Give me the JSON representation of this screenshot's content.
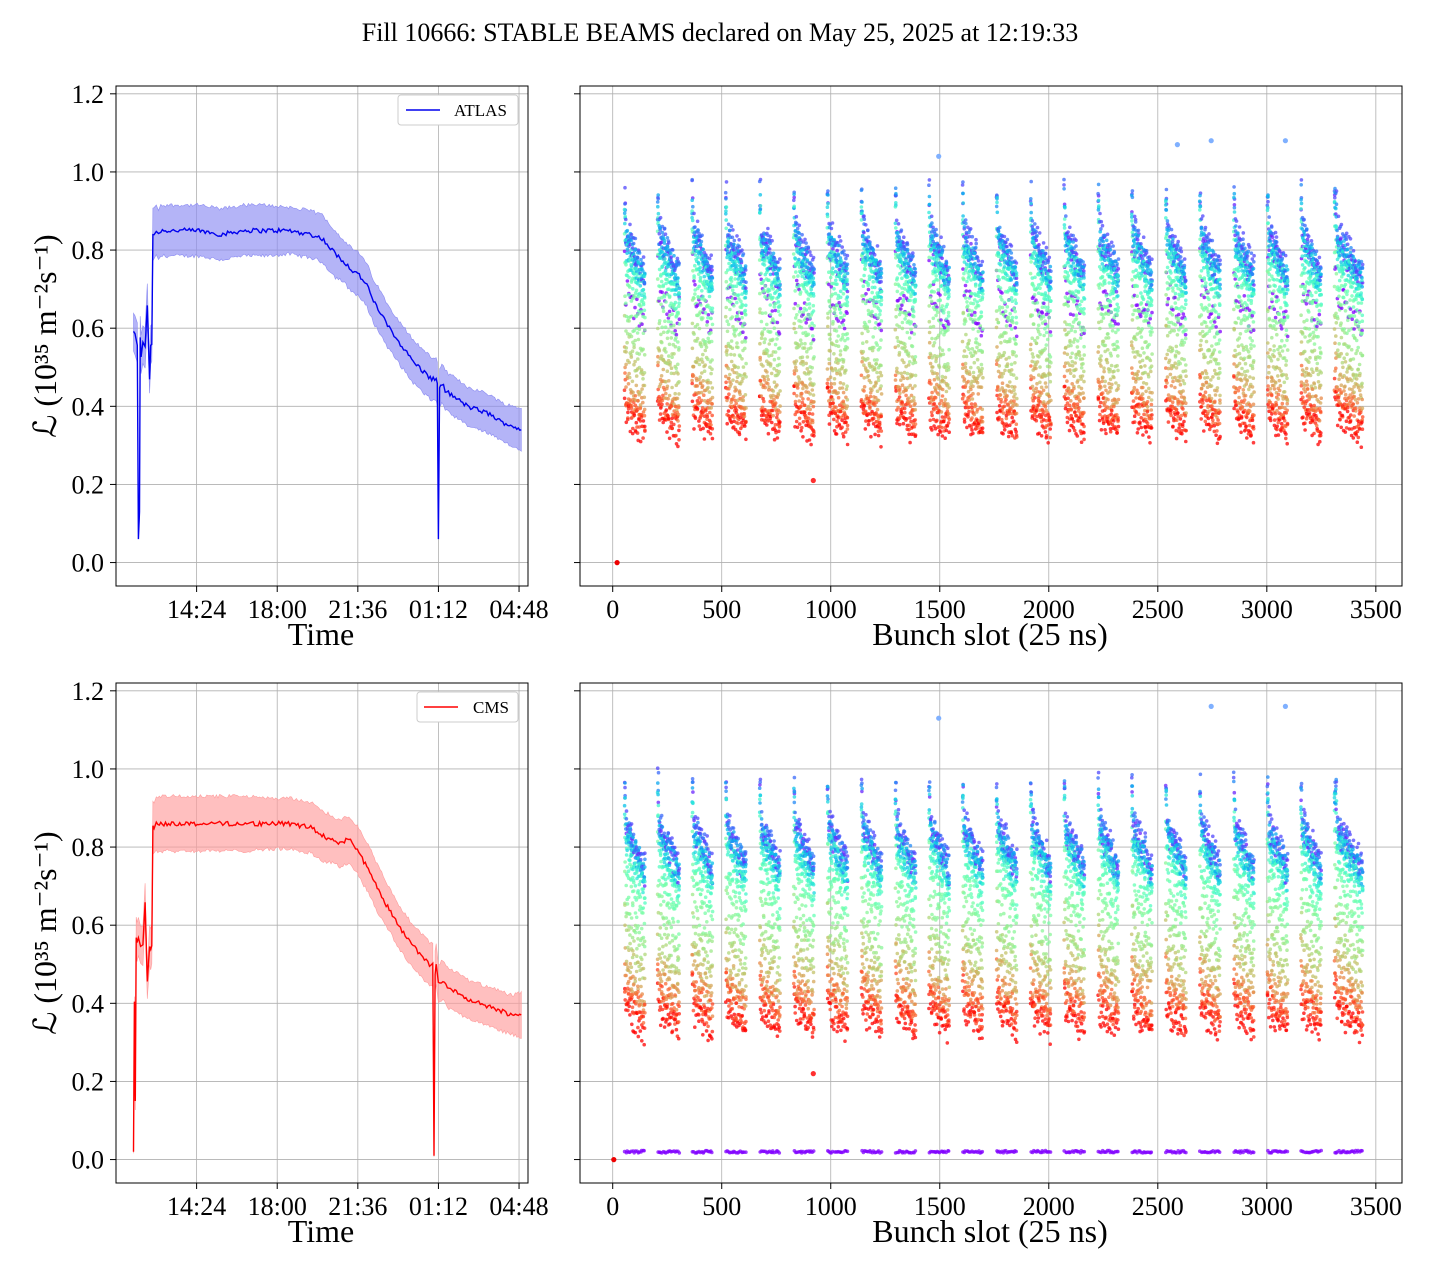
{
  "figure_title": "Fill 10666: STABLE BEAMS declared on May 25, 2025 at 12:19:33",
  "colors": {
    "atlas": "#0000ee",
    "atlas_band": "#8c8cf2",
    "cms": "#ff0000",
    "cms_band": "#ff9c9c",
    "grid": "#b0b0b0",
    "scatter_colormap": "rainbow"
  },
  "chart_data": [
    {
      "type": "line",
      "id": "atlas-time",
      "xlabel": "Time",
      "ylabel": "ℒ (10³⁵ m⁻²s⁻¹)",
      "ylim": [
        -0.06,
        1.22
      ],
      "xlim_hours": [
        10.8,
        29.2
      ],
      "x_ticks": [
        "14:24",
        "18:00",
        "21:36",
        "01:12",
        "04:48"
      ],
      "x_tick_hours": [
        14.4,
        18.0,
        21.6,
        25.2,
        28.8
      ],
      "y_ticks": [
        "0.0",
        "0.2",
        "0.4",
        "0.6",
        "0.8",
        "1.0",
        "1.2"
      ],
      "grid": true,
      "legend": {
        "label": "ATLAS",
        "position": "upper right"
      },
      "series": [
        {
          "name": "ATLAS",
          "x_hours": [
            11.58,
            11.65,
            11.75,
            11.8,
            11.85,
            11.88,
            11.92,
            12.0,
            12.1,
            12.2,
            12.3,
            12.35,
            12.4,
            12.45,
            12.5,
            12.6,
            12.7,
            12.8,
            13.5,
            14.5,
            15.5,
            16.5,
            17.5,
            18.5,
            19.5,
            20.0,
            20.3,
            20.6,
            20.8,
            21.0,
            21.3,
            21.6,
            22.0,
            22.3,
            22.7,
            23.0,
            23.5,
            24.0,
            24.5,
            24.9,
            25.1,
            25.15,
            25.2,
            25.25,
            25.3,
            25.35,
            25.5,
            26.0,
            26.5,
            27.0,
            27.5,
            28.0,
            28.5,
            28.9
          ],
          "values": [
            0.59,
            0.58,
            0.56,
            0.06,
            0.13,
            0.58,
            0.53,
            0.56,
            0.55,
            0.66,
            0.47,
            0.56,
            0.56,
            0.84,
            0.84,
            0.85,
            0.84,
            0.85,
            0.85,
            0.85,
            0.84,
            0.85,
            0.85,
            0.85,
            0.84,
            0.83,
            0.81,
            0.79,
            0.78,
            0.77,
            0.75,
            0.74,
            0.71,
            0.67,
            0.63,
            0.6,
            0.56,
            0.52,
            0.49,
            0.47,
            0.47,
            0.46,
            0.06,
            0.45,
            0.45,
            0.46,
            0.44,
            0.42,
            0.4,
            0.39,
            0.38,
            0.36,
            0.35,
            0.34
          ],
          "band_halfwidth": [
            0.05,
            0.05,
            0.05,
            0.0,
            0.02,
            0.05,
            0.05,
            0.05,
            0.05,
            0.05,
            0.04,
            0.05,
            0.05,
            0.065,
            0.065,
            0.065,
            0.065,
            0.065,
            0.065,
            0.065,
            0.065,
            0.065,
            0.065,
            0.06,
            0.06,
            0.06,
            0.06,
            0.06,
            0.055,
            0.055,
            0.055,
            0.055,
            0.055,
            0.055,
            0.055,
            0.055,
            0.055,
            0.055,
            0.055,
            0.055,
            0.055,
            0.055,
            0.0,
            0.05,
            0.05,
            0.05,
            0.05,
            0.05,
            0.05,
            0.05,
            0.05,
            0.05,
            0.05,
            0.055
          ]
        }
      ]
    },
    {
      "type": "scatter",
      "id": "atlas-bunch",
      "xlabel": "Bunch slot (25 ns)",
      "xlim": [
        -150,
        3620
      ],
      "ylim": [
        -0.06,
        1.22
      ],
      "x_ticks": [
        "0",
        "500",
        "1000",
        "1500",
        "2000",
        "2500",
        "3000",
        "3500"
      ],
      "x_tick_values": [
        0,
        500,
        1000,
        1500,
        2000,
        2500,
        3000,
        3500
      ],
      "grid": true,
      "colormap": "rainbow (point color encodes time: purple = early, red = late)",
      "trains_start_slots": [
        56,
        208,
        366,
        520,
        676,
        832,
        986,
        1142,
        1298,
        1452,
        1606,
        1762,
        1918,
        2072,
        2228,
        2382,
        2538,
        2694,
        2850,
        3004,
        3158,
        3312
      ],
      "trains_end_slots": [
        148,
        304,
        460,
        614,
        770,
        924,
        1080,
        1236,
        1390,
        1546,
        1700,
        1856,
        2010,
        2166,
        2322,
        2476,
        2630,
        2786,
        2942,
        3096,
        3252,
        3440
      ],
      "colour_levels": [
        0.7,
        0.83,
        0.87,
        0.86,
        0.85,
        0.84,
        0.83,
        0.82,
        0.81,
        0.8,
        0.77,
        0.74,
        0.7,
        0.65,
        0.6,
        0.56,
        0.52,
        0.48,
        0.45,
        0.43,
        0.41,
        0.4,
        0.38
      ],
      "colour_spread": 0.07,
      "extra_points": [
        {
          "x": 20,
          "y": 0.0
        },
        {
          "x": 920,
          "y": 0.21
        },
        {
          "x": 1495,
          "y": 1.04
        },
        {
          "x": 2590,
          "y": 1.07
        },
        {
          "x": 2745,
          "y": 1.08
        },
        {
          "x": 3085,
          "y": 1.08
        }
      ]
    },
    {
      "type": "line",
      "id": "cms-time",
      "xlabel": "Time",
      "ylabel": "ℒ (10³⁵ m⁻²s⁻¹)",
      "ylim": [
        -0.06,
        1.22
      ],
      "xlim_hours": [
        10.8,
        29.2
      ],
      "x_ticks": [
        "14:24",
        "18:00",
        "21:36",
        "01:12",
        "04:48"
      ],
      "x_tick_hours": [
        14.4,
        18.0,
        21.6,
        25.2,
        28.8
      ],
      "y_ticks": [
        "0.0",
        "0.2",
        "0.4",
        "0.6",
        "0.8",
        "1.0",
        "1.2"
      ],
      "grid": true,
      "legend": {
        "label": "CMS",
        "position": "upper right"
      },
      "series": [
        {
          "name": "CMS",
          "x_hours": [
            11.58,
            11.62,
            11.66,
            11.7,
            11.74,
            11.8,
            11.9,
            12.0,
            12.1,
            12.2,
            12.3,
            12.35,
            12.4,
            12.45,
            12.5,
            12.6,
            12.8,
            13.5,
            14.5,
            15.5,
            16.5,
            17.5,
            18.5,
            19.5,
            20.0,
            20.4,
            20.8,
            21.2,
            21.5,
            21.8,
            22.2,
            22.6,
            23.0,
            23.5,
            24.0,
            24.5,
            24.8,
            24.95,
            25.0,
            25.05,
            25.1,
            25.2,
            25.4,
            25.6,
            26.0,
            26.5,
            27.0,
            27.5,
            28.0,
            28.5,
            28.9
          ],
          "values": [
            0.02,
            0.4,
            0.15,
            0.57,
            0.56,
            0.57,
            0.55,
            0.55,
            0.66,
            0.45,
            0.55,
            0.54,
            0.55,
            0.85,
            0.85,
            0.86,
            0.86,
            0.86,
            0.86,
            0.86,
            0.86,
            0.86,
            0.86,
            0.85,
            0.83,
            0.82,
            0.81,
            0.82,
            0.8,
            0.77,
            0.73,
            0.68,
            0.64,
            0.59,
            0.55,
            0.52,
            0.5,
            0.5,
            0.01,
            0.48,
            0.5,
            0.45,
            0.46,
            0.44,
            0.43,
            0.41,
            0.4,
            0.39,
            0.38,
            0.37,
            0.37
          ],
          "band_halfwidth": [
            0.0,
            0.02,
            0.02,
            0.05,
            0.05,
            0.05,
            0.05,
            0.05,
            0.05,
            0.04,
            0.05,
            0.05,
            0.05,
            0.065,
            0.065,
            0.07,
            0.07,
            0.07,
            0.07,
            0.07,
            0.07,
            0.065,
            0.065,
            0.065,
            0.065,
            0.06,
            0.06,
            0.06,
            0.06,
            0.06,
            0.06,
            0.06,
            0.055,
            0.055,
            0.055,
            0.055,
            0.055,
            0.055,
            0.0,
            0.05,
            0.05,
            0.05,
            0.05,
            0.05,
            0.05,
            0.05,
            0.05,
            0.05,
            0.05,
            0.05,
            0.06
          ]
        }
      ]
    },
    {
      "type": "scatter",
      "id": "cms-bunch",
      "xlabel": "Bunch slot (25 ns)",
      "xlim": [
        -150,
        3620
      ],
      "ylim": [
        -0.06,
        1.22
      ],
      "x_ticks": [
        "0",
        "500",
        "1000",
        "1500",
        "2000",
        "2500",
        "3000",
        "3500"
      ],
      "x_tick_values": [
        0,
        500,
        1000,
        1500,
        2000,
        2500,
        3000,
        3500
      ],
      "grid": true,
      "colormap": "rainbow (point color encodes time: purple = early, red = late)",
      "trains_start_slots": [
        56,
        208,
        366,
        520,
        676,
        832,
        986,
        1142,
        1298,
        1452,
        1606,
        1762,
        1918,
        2072,
        2228,
        2382,
        2538,
        2694,
        2850,
        3004,
        3158,
        3312
      ],
      "trains_end_slots": [
        148,
        304,
        460,
        614,
        770,
        924,
        1080,
        1236,
        1390,
        1546,
        1700,
        1856,
        2010,
        2166,
        2322,
        2476,
        2630,
        2786,
        2942,
        3096,
        3252,
        3440
      ],
      "colour_levels": [
        0.02,
        0.85,
        0.88,
        0.87,
        0.86,
        0.85,
        0.84,
        0.83,
        0.82,
        0.81,
        0.78,
        0.75,
        0.71,
        0.66,
        0.61,
        0.57,
        0.53,
        0.49,
        0.46,
        0.44,
        0.42,
        0.4,
        0.38
      ],
      "colour_spread": 0.07,
      "extra_points": [
        {
          "x": 5,
          "y": 0.0
        },
        {
          "x": 920,
          "y": 0.22
        },
        {
          "x": 1495,
          "y": 1.13
        },
        {
          "x": 2745,
          "y": 1.16
        },
        {
          "x": 3085,
          "y": 1.16
        }
      ]
    }
  ]
}
